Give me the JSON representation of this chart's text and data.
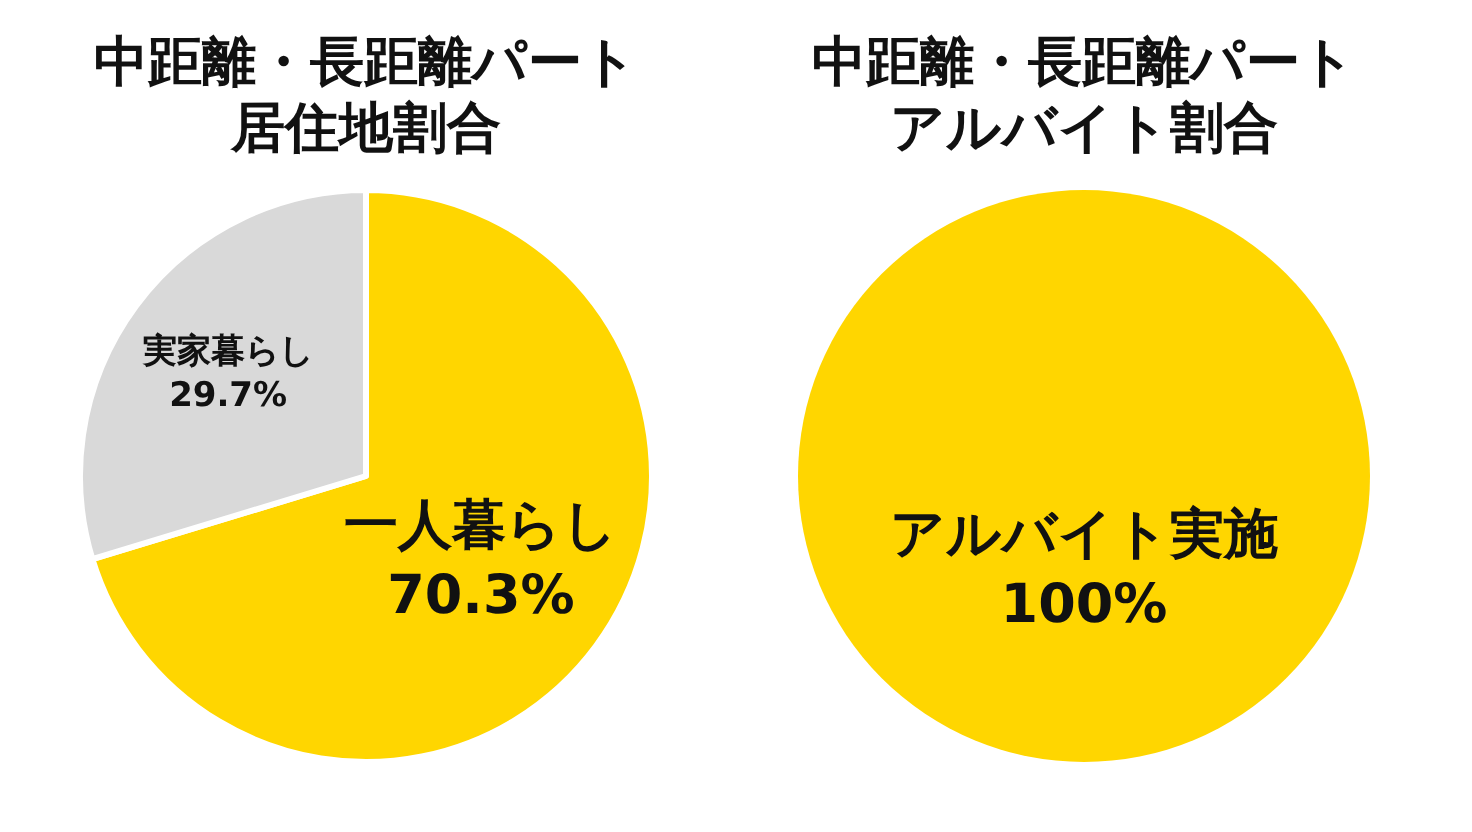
{
  "chart_data": [
    {
      "type": "pie",
      "title": "中距離・長距離パート居住地割合",
      "categories": [
        "一人暮らし",
        "実家暮らし"
      ],
      "values": [
        70.3,
        29.7
      ],
      "colors": [
        "#ffd600",
        "#d9d9d9"
      ],
      "value_labels": [
        "70.3%",
        "29.7%"
      ]
    },
    {
      "type": "pie",
      "title": "中距離・長距離パートアルバイト割合",
      "categories": [
        "アルバイト実施"
      ],
      "values": [
        100
      ],
      "colors": [
        "#ffd600"
      ],
      "value_labels": [
        "100%"
      ]
    }
  ]
}
